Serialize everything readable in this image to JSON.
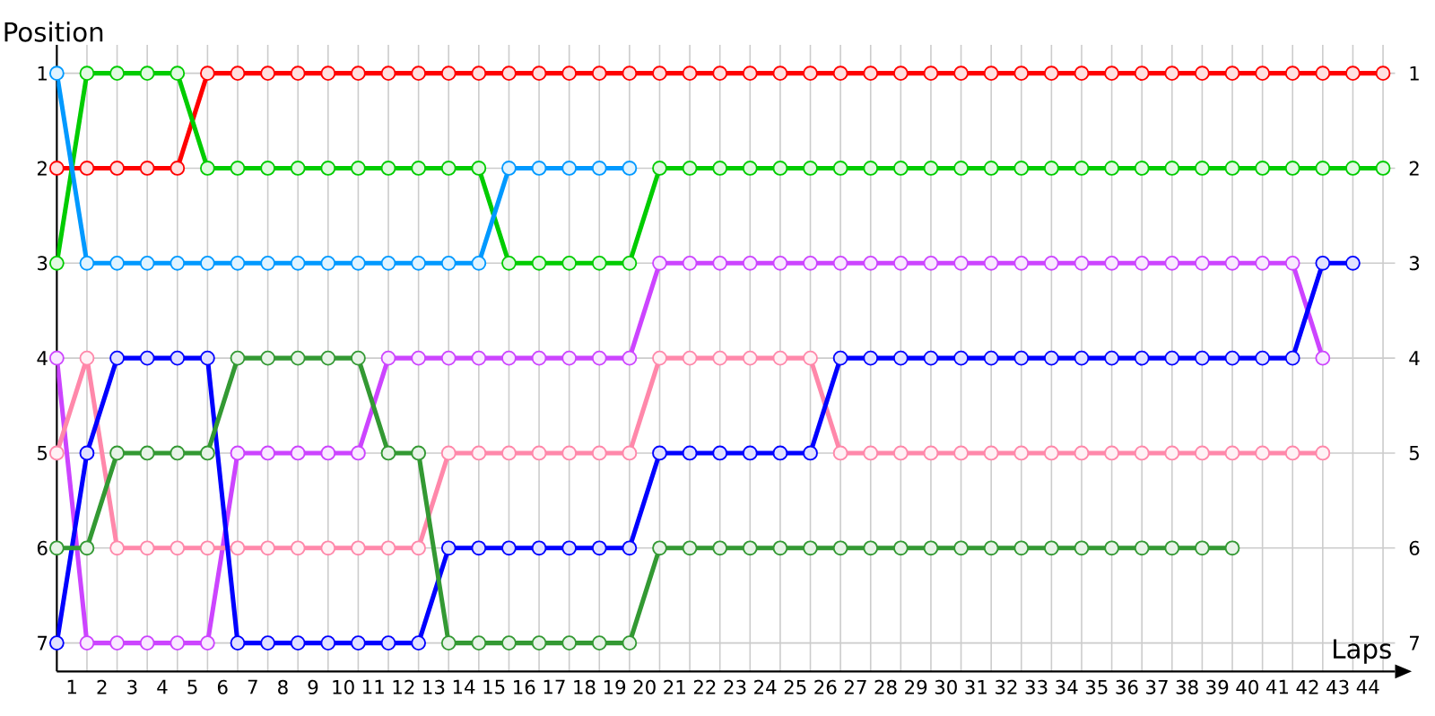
{
  "chart_data": {
    "type": "line",
    "xlabel": "Laps",
    "ylabel": "Position",
    "x": [
      0,
      1,
      2,
      3,
      4,
      5,
      6,
      7,
      8,
      9,
      10,
      11,
      12,
      13,
      14,
      15,
      16,
      17,
      18,
      19,
      20,
      21,
      22,
      23,
      24,
      25,
      26,
      27,
      28,
      29,
      30,
      31,
      32,
      33,
      34,
      35,
      36,
      37,
      38,
      39,
      40,
      41,
      42,
      43,
      44
    ],
    "series": [
      {
        "color": "#ff0000",
        "values": [
          2,
          2,
          2,
          2,
          2,
          1,
          1,
          1,
          1,
          1,
          1,
          1,
          1,
          1,
          1,
          1,
          1,
          1,
          1,
          1,
          1,
          1,
          1,
          1,
          1,
          1,
          1,
          1,
          1,
          1,
          1,
          1,
          1,
          1,
          1,
          1,
          1,
          1,
          1,
          1,
          1,
          1,
          1,
          1,
          1
        ]
      },
      {
        "color": "#00cc00",
        "values": [
          3,
          1,
          1,
          1,
          1,
          2,
          2,
          2,
          2,
          2,
          2,
          2,
          2,
          2,
          2,
          3,
          3,
          3,
          3,
          3,
          2,
          2,
          2,
          2,
          2,
          2,
          2,
          2,
          2,
          2,
          2,
          2,
          2,
          2,
          2,
          2,
          2,
          2,
          2,
          2,
          2,
          2,
          2,
          2,
          2
        ]
      },
      {
        "color": "#0099ff",
        "values": [
          1,
          3,
          3,
          3,
          3,
          3,
          3,
          3,
          3,
          3,
          3,
          3,
          3,
          3,
          3,
          2,
          2,
          2,
          2,
          2,
          null,
          null,
          null,
          null,
          null,
          null,
          null,
          null,
          null,
          null,
          null,
          null,
          null,
          null,
          null,
          null,
          null,
          null,
          null,
          null,
          null,
          null,
          null,
          null,
          null
        ]
      },
      {
        "color": "#cc44ff",
        "values": [
          4,
          7,
          7,
          7,
          7,
          7,
          5,
          5,
          5,
          5,
          5,
          4,
          4,
          4,
          4,
          4,
          4,
          4,
          4,
          4,
          3,
          3,
          3,
          3,
          3,
          3,
          3,
          3,
          3,
          3,
          3,
          3,
          3,
          3,
          3,
          3,
          3,
          3,
          3,
          3,
          3,
          3,
          4,
          null,
          null
        ]
      },
      {
        "color": "#ff88aa",
        "values": [
          5,
          4,
          6,
          6,
          6,
          6,
          6,
          6,
          6,
          6,
          6,
          6,
          6,
          5,
          5,
          5,
          5,
          5,
          5,
          5,
          4,
          4,
          4,
          4,
          4,
          4,
          5,
          5,
          5,
          5,
          5,
          5,
          5,
          5,
          5,
          5,
          5,
          5,
          5,
          5,
          5,
          5,
          5,
          null,
          null
        ]
      },
      {
        "color": "#0000ff",
        "values": [
          7,
          5,
          4,
          4,
          4,
          4,
          7,
          7,
          7,
          7,
          7,
          7,
          7,
          6,
          6,
          6,
          6,
          6,
          6,
          6,
          5,
          5,
          5,
          5,
          5,
          5,
          4,
          4,
          4,
          4,
          4,
          4,
          4,
          4,
          4,
          4,
          4,
          4,
          4,
          4,
          4,
          4,
          3,
          3,
          null
        ]
      },
      {
        "color": "#339933",
        "values": [
          6,
          6,
          5,
          5,
          5,
          5,
          4,
          4,
          4,
          4,
          4,
          5,
          5,
          7,
          7,
          7,
          7,
          7,
          7,
          7,
          6,
          6,
          6,
          6,
          6,
          6,
          6,
          6,
          6,
          6,
          6,
          6,
          6,
          6,
          6,
          6,
          6,
          6,
          6,
          6,
          null,
          null,
          null,
          null,
          null
        ]
      }
    ],
    "xlim": [
      0,
      44.4
    ],
    "xticks": [
      {
        "value": 0.5,
        "label": "1"
      },
      {
        "value": 1.5,
        "label": "2"
      },
      {
        "value": 2.5,
        "label": "3"
      },
      {
        "value": 3.5,
        "label": "4"
      },
      {
        "value": 4.5,
        "label": "5"
      },
      {
        "value": 5.5,
        "label": "6"
      },
      {
        "value": 6.5,
        "label": "7"
      },
      {
        "value": 7.5,
        "label": "8"
      },
      {
        "value": 8.5,
        "label": "9"
      },
      {
        "value": 9.5,
        "label": "10"
      },
      {
        "value": 10.5,
        "label": "11"
      },
      {
        "value": 11.5,
        "label": "12"
      },
      {
        "value": 12.5,
        "label": "13"
      },
      {
        "value": 13.5,
        "label": "14"
      },
      {
        "value": 14.5,
        "label": "15"
      },
      {
        "value": 15.5,
        "label": "16"
      },
      {
        "value": 16.5,
        "label": "17"
      },
      {
        "value": 17.5,
        "label": "18"
      },
      {
        "value": 18.5,
        "label": "19"
      },
      {
        "value": 19.5,
        "label": "20"
      },
      {
        "value": 20.5,
        "label": "21"
      },
      {
        "value": 21.5,
        "label": "22"
      },
      {
        "value": 22.5,
        "label": "23"
      },
      {
        "value": 23.5,
        "label": "24"
      },
      {
        "value": 24.5,
        "label": "25"
      },
      {
        "value": 25.5,
        "label": "26"
      },
      {
        "value": 26.5,
        "label": "27"
      },
      {
        "value": 27.5,
        "label": "28"
      },
      {
        "value": 28.5,
        "label": "29"
      },
      {
        "value": 29.5,
        "label": "30"
      },
      {
        "value": 30.5,
        "label": "31"
      },
      {
        "value": 31.5,
        "label": "32"
      },
      {
        "value": 32.5,
        "label": "33"
      },
      {
        "value": 33.5,
        "label": "34"
      },
      {
        "value": 34.5,
        "label": "35"
      },
      {
        "value": 35.5,
        "label": "36"
      },
      {
        "value": 36.5,
        "label": "37"
      },
      {
        "value": 37.5,
        "label": "38"
      },
      {
        "value": 38.5,
        "label": "39"
      },
      {
        "value": 39.5,
        "label": "40"
      },
      {
        "value": 40.5,
        "label": "41"
      },
      {
        "value": 41.5,
        "label": "42"
      },
      {
        "value": 42.5,
        "label": "43"
      },
      {
        "value": 43.5,
        "label": "44"
      }
    ],
    "ylim": [
      7.3,
      0.7
    ],
    "yticks": [
      1,
      2,
      3,
      4,
      5,
      6,
      7
    ],
    "y2lim": [
      7.3,
      0.7
    ],
    "y2ticks": [
      1,
      2,
      3,
      4,
      5,
      6,
      7
    ],
    "grid": true,
    "marker": "circle",
    "line_style": "solid"
  }
}
